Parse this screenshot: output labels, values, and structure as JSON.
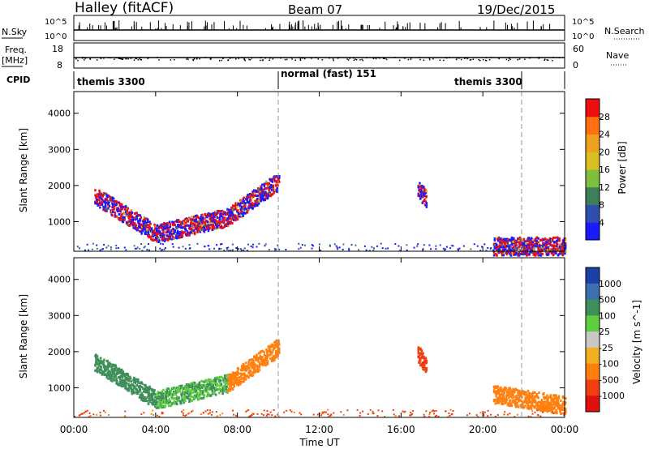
{
  "header": {
    "radar": "Halley (fitACF)",
    "beam": "Beam 07",
    "date": "19/Dec/2015"
  },
  "summary": {
    "nsky_label": "N.Sky",
    "nsearch_label": "N.Search",
    "freq_label_1": "Freq.",
    "freq_label_2": "[MHz]",
    "nave_label": "Nave",
    "cpid_label": "CPID",
    "noise_ticks": [
      "10^5",
      "10^0"
    ],
    "freq_ticks": [
      "18",
      "8"
    ],
    "nave_ticks": [
      "60",
      "0"
    ],
    "cpid_segments": [
      {
        "label": "themis 3300",
        "start_h": 0,
        "end_h": 10
      },
      {
        "label": "normal (fast) 151",
        "start_h": 10,
        "end_h": 22
      },
      {
        "label": "themis 3300",
        "start_h": 22,
        "end_h": 24
      }
    ]
  },
  "axes": {
    "ylabel": "Slant Range [km]",
    "y_ticks": [
      "1000",
      "2000",
      "3000",
      "4000"
    ],
    "x_ticks": [
      "00:00",
      "04:00",
      "08:00",
      "12:00",
      "16:00",
      "20:00",
      "00:00"
    ],
    "xlabel": "Time UT"
  },
  "power_colorbar": {
    "label": "Power [dB]",
    "ticks": [
      "4",
      "8",
      "12",
      "16",
      "20",
      "24",
      "28"
    ],
    "colors": [
      "#1a1aff",
      "#2f4fb0",
      "#3c7f5a",
      "#7fbf3f",
      "#d8c020",
      "#f0a020",
      "#ff7010",
      "#ee1010"
    ]
  },
  "velocity_colorbar": {
    "label": "Velocity [m s^-1]",
    "ticks": [
      "1000",
      "500",
      "100",
      "25",
      "-25",
      "-100",
      "-500",
      "-1000"
    ],
    "colors": [
      "#1d3fa8",
      "#3c6fb0",
      "#3f8f5a",
      "#5fcf3f",
      "#c8c8c8",
      "#f0b020",
      "#ff8010",
      "#f04010",
      "#e01010"
    ]
  },
  "chart_data": {
    "type": "heatmap",
    "title": "Halley (fitACF) Beam 07 19/Dec/2015",
    "xlabel": "Time UT",
    "ylabel": "Slant Range [km]",
    "xlim_hours": [
      0,
      24
    ],
    "ylim_km": [
      180,
      4600
    ],
    "panels": [
      {
        "name": "Power [dB]",
        "scale": [
          0,
          30
        ],
        "echo_bands": [
          {
            "t_start_h": 1.0,
            "t_end_h": 4.0,
            "range_start_km": 1700,
            "range_end_km": 650,
            "value": 14
          },
          {
            "t_start_h": 4.0,
            "t_end_h": 7.5,
            "range_start_km": 650,
            "range_end_km": 1100,
            "value": 16
          },
          {
            "t_start_h": 7.5,
            "t_end_h": 10.0,
            "range_start_km": 1100,
            "range_end_km": 2100,
            "value": 10
          },
          {
            "t_start_h": 16.8,
            "t_end_h": 17.2,
            "range_start_km": 1900,
            "range_end_km": 1600,
            "value": 18
          },
          {
            "t_start_h": 20.5,
            "t_end_h": 24.0,
            "range_start_km": 300,
            "range_end_km": 300,
            "value": 28
          }
        ]
      },
      {
        "name": "Velocity [m s^-1]",
        "scale": [
          -1000,
          1000
        ],
        "echo_bands": [
          {
            "t_start_h": 1.0,
            "t_end_h": 4.0,
            "range_start_km": 1700,
            "range_end_km": 650,
            "value": 200
          },
          {
            "t_start_h": 4.0,
            "t_end_h": 7.5,
            "range_start_km": 650,
            "range_end_km": 1100,
            "value": 100
          },
          {
            "t_start_h": 7.5,
            "t_end_h": 10.0,
            "range_start_km": 1100,
            "range_end_km": 2100,
            "value": -200
          },
          {
            "t_start_h": 16.8,
            "t_end_h": 17.2,
            "range_start_km": 1900,
            "range_end_km": 1600,
            "value": -800
          },
          {
            "t_start_h": 20.5,
            "t_end_h": 24.0,
            "range_start_km": 800,
            "range_end_km": 500,
            "value": -300
          }
        ]
      }
    ]
  }
}
